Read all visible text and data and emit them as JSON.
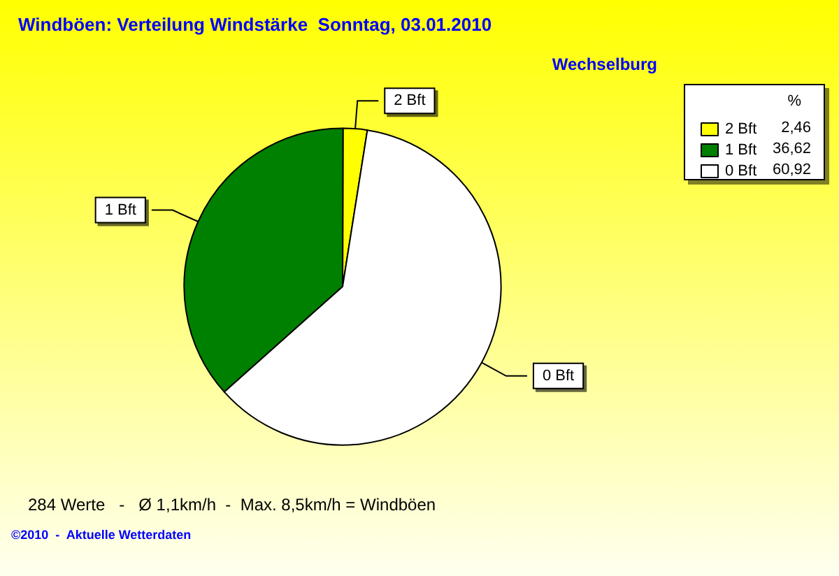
{
  "chart_data": {
    "type": "pie",
    "title": "Windböen: Verteilung Windstärke  Sonntag, 03.01.2010",
    "subtitle": "Wechselburg",
    "legend_title": "%",
    "legend": "top right",
    "categories": [
      "2 Bft",
      "1 Bft",
      "0 Bft"
    ],
    "values": [
      2.46,
      36.62,
      60.92
    ],
    "value_labels": [
      "2,46",
      "36,62",
      "60,92"
    ],
    "colors": [
      "#ffff00",
      "#008000",
      "#ffffff"
    ],
    "annotations": [
      "284 Werte   -   Ø 1,1km/h  -  Max. 8,5km/h = Windböen",
      "©2010  -  Aktuelle Wetterdaten"
    ]
  }
}
